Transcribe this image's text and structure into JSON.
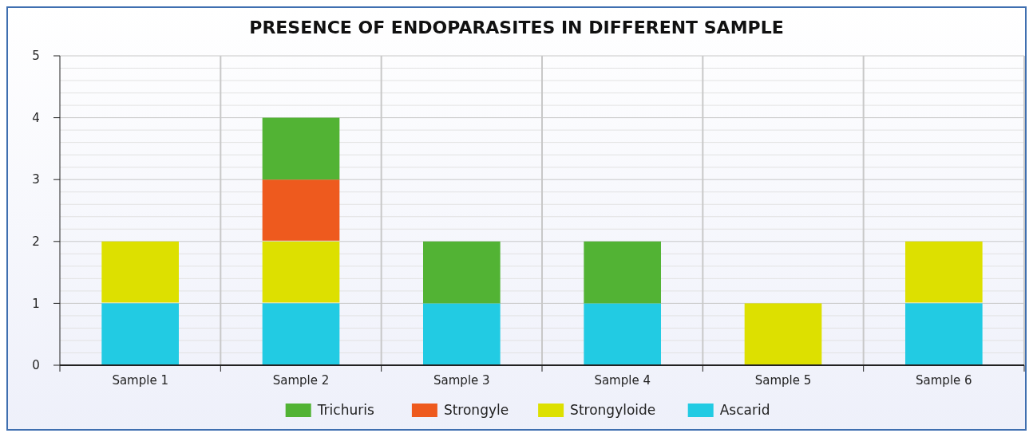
{
  "chart_data": {
    "type": "bar",
    "title": "PRESENCE OF ENDOPARASITES IN DIFFERENT SAMPLE",
    "categories": [
      "Sample 1",
      "Sample 2",
      "Sample 3",
      "Sample 4",
      "Sample 5",
      "Sample 6"
    ],
    "stacked": true,
    "series": [
      {
        "name": "Ascarid",
        "color": "#22cbe3",
        "values": [
          1,
          1,
          1,
          1,
          0,
          1
        ]
      },
      {
        "name": "Strongyloide",
        "color": "#dde000",
        "values": [
          1,
          1,
          0,
          0,
          1,
          1
        ]
      },
      {
        "name": "Strongyle",
        "color": "#ee5a1e",
        "values": [
          0,
          1,
          0,
          0,
          0,
          0
        ]
      },
      {
        "name": "Trichuris",
        "color": "#52b334",
        "values": [
          0,
          1,
          1,
          1,
          0,
          0
        ]
      }
    ],
    "ylim": [
      0,
      5
    ],
    "yticks": [
      0,
      1,
      2,
      3,
      4,
      5
    ],
    "grid": true,
    "legend": "bottom"
  }
}
